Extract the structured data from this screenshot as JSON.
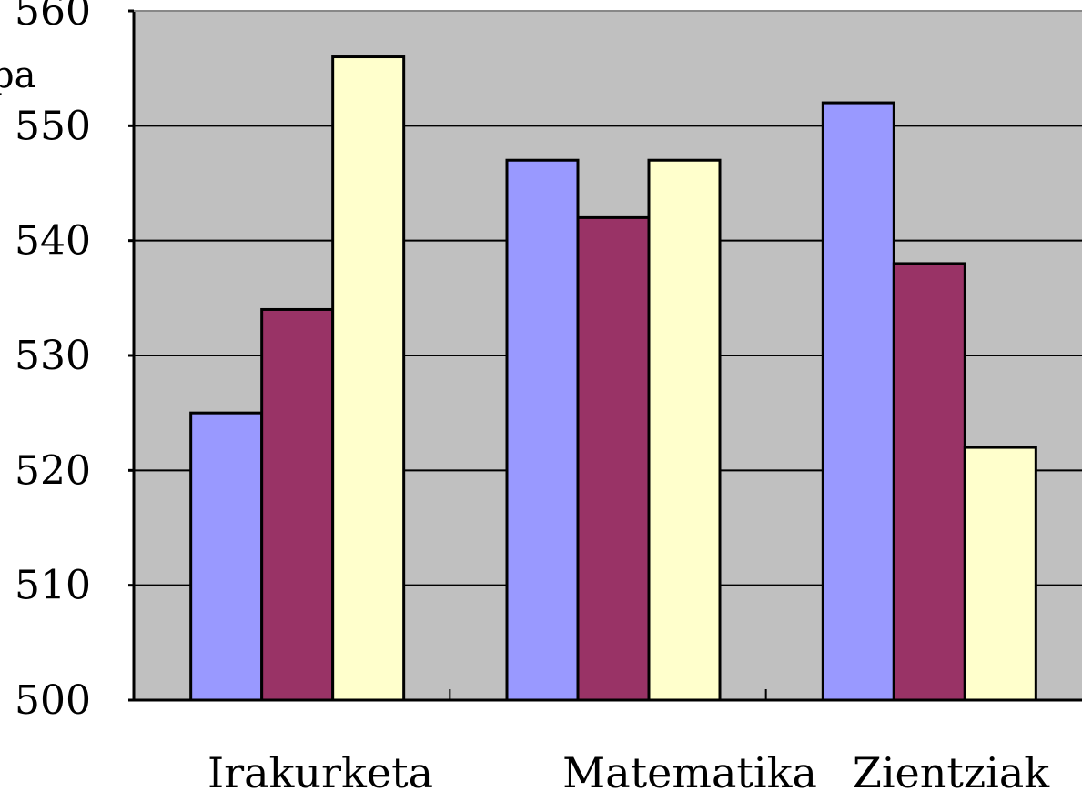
{
  "chart_data": {
    "type": "bar",
    "title": "",
    "xlabel": "",
    "ylabel_fragment": "pa",
    "categories": [
      "Irakurketa",
      "Matematika",
      "Zientziak"
    ],
    "series": [
      {
        "color": "#9999FF",
        "values": [
          525,
          547,
          552
        ]
      },
      {
        "color": "#993366",
        "values": [
          534,
          542,
          538
        ]
      },
      {
        "color": "#FFFFCC",
        "values": [
          556,
          547,
          522
        ]
      }
    ],
    "ylim": [
      500,
      560
    ],
    "yticks": [
      "500",
      "510",
      "520",
      "530",
      "540",
      "550",
      "560"
    ],
    "grid": true,
    "plot_background": "#C0C0C0",
    "legend": "none"
  }
}
